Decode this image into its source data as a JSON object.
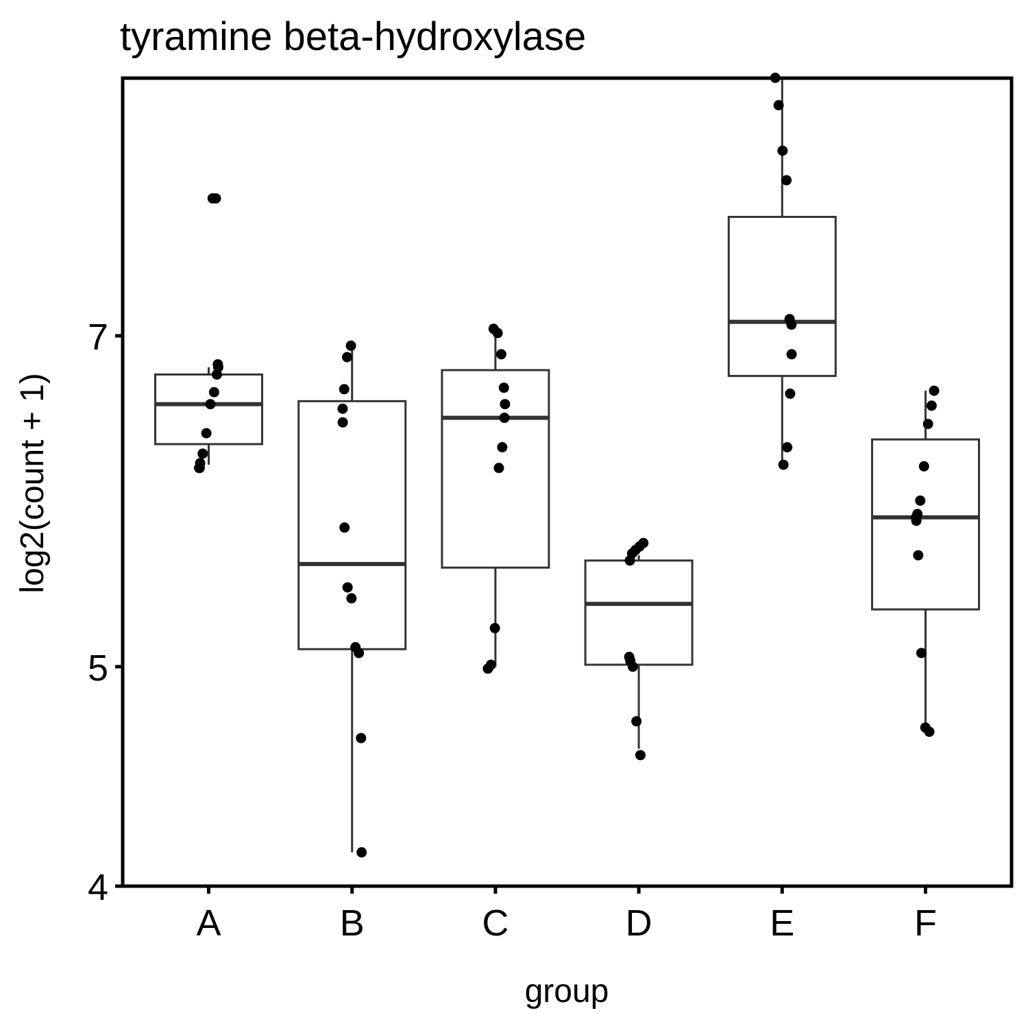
{
  "chart_data": {
    "type": "box",
    "title": "tyramine beta-hydroxylase",
    "xlabel": "group",
    "ylabel": "log2(count + 1)",
    "y_scale": "log",
    "ylim": [
      4,
      9.1
    ],
    "y_ticks": [
      4,
      5,
      7
    ],
    "y_tick_labels": [
      "4",
      "5",
      "7"
    ],
    "categories": [
      "A",
      "B",
      "C",
      "D",
      "E",
      "F"
    ],
    "grid": false,
    "legend": "none",
    "colors": {
      "points": "#000000",
      "box": "#333333",
      "frame": "#000000"
    },
    "boxes": [
      {
        "group": "A",
        "q1": 6.27,
        "median": 6.53,
        "q3": 6.73,
        "whisker_low": 6.14,
        "whisker_high": 6.78
      },
      {
        "group": "B",
        "q1": 5.09,
        "median": 5.55,
        "q3": 6.55,
        "whisker_low": 4.14,
        "whisker_high": 6.93
      },
      {
        "group": "C",
        "q1": 5.53,
        "median": 6.44,
        "q3": 6.76,
        "whisker_low": 5.0,
        "whisker_high": 7.04
      },
      {
        "group": "D",
        "q1": 5.01,
        "median": 5.33,
        "q3": 5.57,
        "whisker_low": 4.6,
        "whisker_high": 5.6
      },
      {
        "group": "E",
        "q1": 6.72,
        "median": 7.1,
        "q3": 7.9,
        "whisker_low": 6.15,
        "whisker_high": 9.1
      },
      {
        "group": "F",
        "q1": 5.3,
        "median": 5.82,
        "q3": 6.3,
        "whisker_low": 4.72,
        "whisker_high": 6.62
      }
    ],
    "points": [
      {
        "group": "A",
        "y": [
          8.05,
          8.05,
          6.8,
          6.78,
          6.73,
          6.61,
          6.53,
          6.34,
          6.21,
          6.15,
          6.12,
          6.12
        ]
      },
      {
        "group": "B",
        "y": [
          6.93,
          6.85,
          6.63,
          6.5,
          6.41,
          5.76,
          5.42,
          5.36,
          5.1,
          5.07,
          4.65,
          4.14
        ]
      },
      {
        "group": "C",
        "y": [
          7.05,
          7.02,
          6.87,
          6.64,
          6.53,
          6.44,
          6.25,
          6.12,
          5.2,
          5.01,
          4.99
        ]
      },
      {
        "group": "D",
        "y": [
          5.67,
          5.65,
          5.63,
          5.61,
          5.57,
          5.05,
          5.03,
          5.0,
          4.73,
          4.57
        ]
      },
      {
        "group": "E",
        "y": [
          9.1,
          8.85,
          8.45,
          8.2,
          7.12,
          7.08,
          6.87,
          6.6,
          6.25,
          6.14
        ]
      },
      {
        "group": "F",
        "y": [
          6.62,
          6.52,
          6.4,
          6.13,
          5.92,
          5.84,
          5.82,
          5.8,
          5.6,
          5.07,
          4.7,
          4.68
        ]
      }
    ]
  }
}
